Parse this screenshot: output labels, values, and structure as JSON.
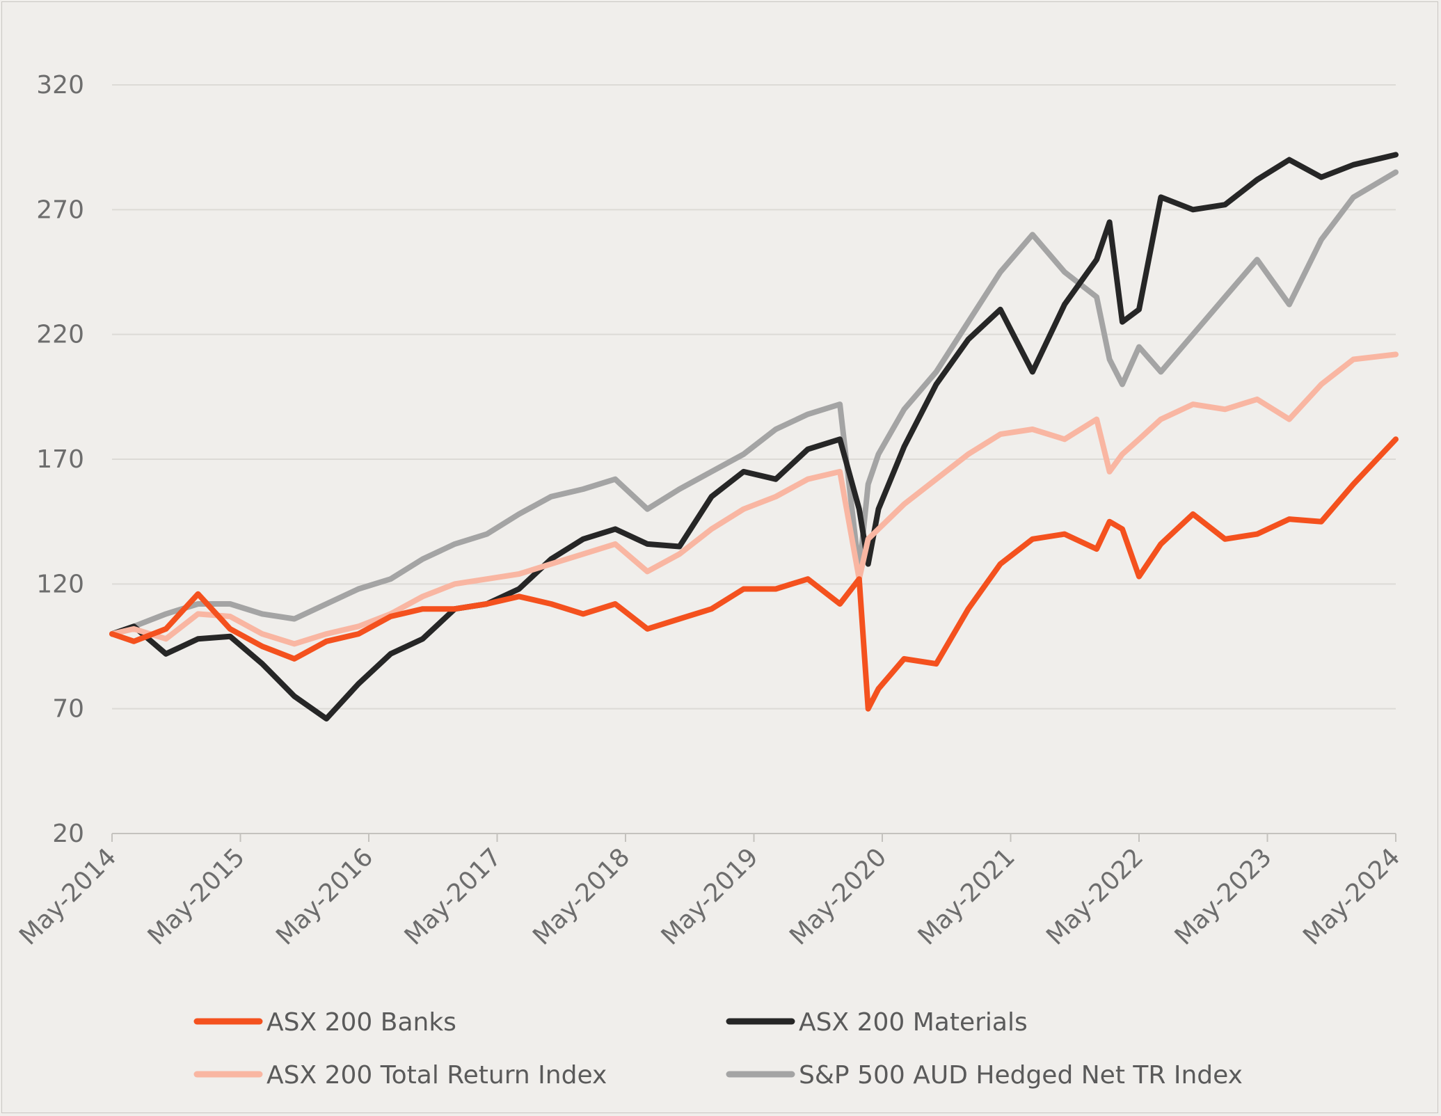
{
  "chart_data": {
    "type": "line",
    "title": "",
    "xlabel": "",
    "ylabel": "",
    "ylim": [
      20,
      320
    ],
    "y_ticks": [
      "20",
      "70",
      "120",
      "170",
      "220",
      "270",
      "320"
    ],
    "x_ticks": [
      "May-2014",
      "May-2015",
      "May-2016",
      "May-2017",
      "May-2018",
      "May-2019",
      "May-2020",
      "May-2021",
      "May-2022",
      "May-2023",
      "May-2024"
    ],
    "x_range": [
      2014.33,
      2024.33
    ],
    "grid": "horizontal",
    "legend_placement": "bottom",
    "x_points": [
      2014.33,
      2014.5,
      2014.75,
      2015.0,
      2015.25,
      2015.5,
      2015.75,
      2016.0,
      2016.25,
      2016.5,
      2016.75,
      2017.0,
      2017.25,
      2017.5,
      2017.75,
      2018.0,
      2018.25,
      2018.5,
      2018.75,
      2019.0,
      2019.25,
      2019.5,
      2019.75,
      2020.0,
      2020.15,
      2020.22,
      2020.3,
      2020.5,
      2020.75,
      2021.0,
      2021.25,
      2021.5,
      2021.75,
      2022.0,
      2022.1,
      2022.2,
      2022.33,
      2022.5,
      2022.75,
      2023.0,
      2023.25,
      2023.5,
      2023.75,
      2024.0,
      2024.33
    ],
    "series": [
      {
        "name": "ASX 200 Banks",
        "color": "#f4511e",
        "values": [
          100,
          97,
          102,
          116,
          102,
          95,
          90,
          97,
          100,
          107,
          110,
          110,
          112,
          115,
          112,
          108,
          112,
          102,
          106,
          110,
          118,
          118,
          122,
          112,
          122,
          70,
          78,
          90,
          88,
          110,
          128,
          138,
          140,
          134,
          145,
          142,
          123,
          136,
          148,
          138,
          140,
          146,
          145,
          160,
          178
        ]
      },
      {
        "name": "ASX 200 Materials",
        "color": "#262626",
        "values": [
          100,
          103,
          92,
          98,
          99,
          88,
          75,
          66,
          80,
          92,
          98,
          110,
          112,
          118,
          130,
          138,
          142,
          136,
          135,
          155,
          165,
          162,
          174,
          178,
          150,
          128,
          150,
          175,
          200,
          218,
          230,
          205,
          232,
          250,
          265,
          225,
          230,
          275,
          270,
          272,
          282,
          290,
          283,
          288,
          292
        ]
      },
      {
        "name": "ASX 200 Total Return Index",
        "color": "#f9b6a2",
        "values": [
          100,
          102,
          98,
          108,
          107,
          100,
          96,
          100,
          103,
          108,
          115,
          120,
          122,
          124,
          128,
          132,
          136,
          125,
          132,
          142,
          150,
          155,
          162,
          165,
          122,
          138,
          142,
          152,
          162,
          172,
          180,
          182,
          178,
          186,
          165,
          172,
          178,
          186,
          192,
          190,
          194,
          186,
          200,
          210,
          212
        ]
      },
      {
        "name": "S&P 500 AUD Hedged Net TR Index",
        "color": "#a4a4a4",
        "values": [
          100,
          103,
          108,
          112,
          112,
          108,
          106,
          112,
          118,
          122,
          130,
          136,
          140,
          148,
          155,
          158,
          162,
          150,
          158,
          165,
          172,
          182,
          188,
          192,
          125,
          160,
          172,
          190,
          205,
          225,
          245,
          260,
          245,
          235,
          210,
          200,
          215,
          205,
          220,
          235,
          250,
          232,
          258,
          275,
          285
        ]
      }
    ]
  }
}
